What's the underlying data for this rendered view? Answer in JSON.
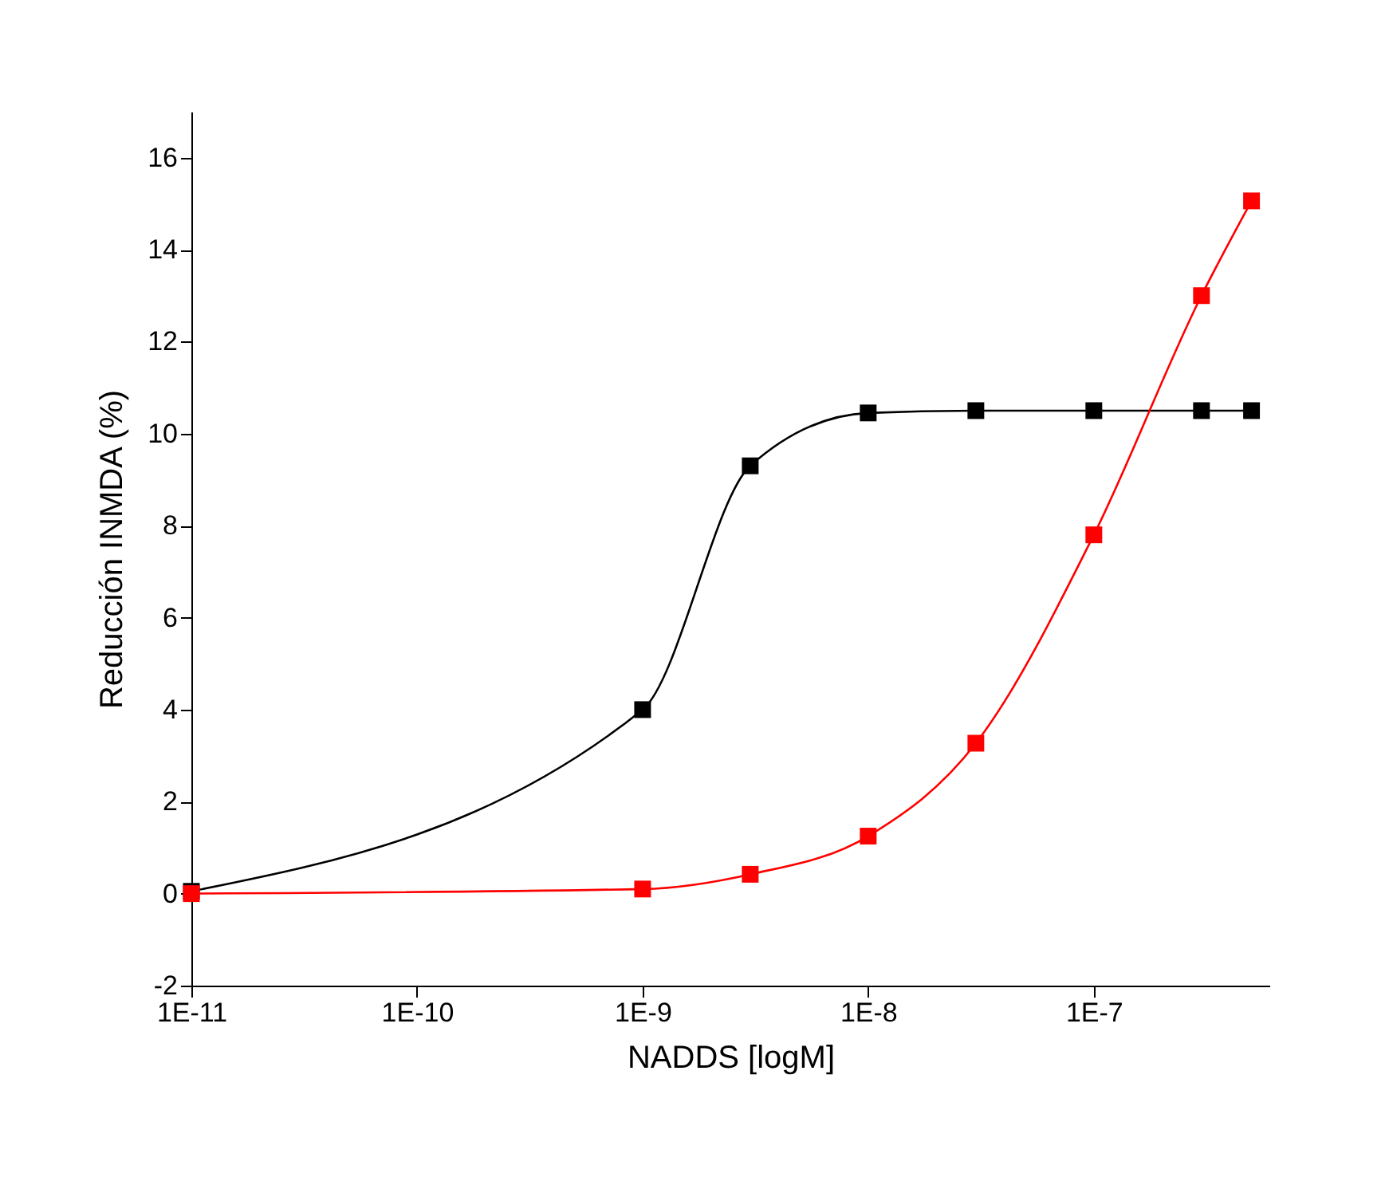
{
  "chart_data": {
    "type": "line",
    "xlabel": "NADDS [logM]",
    "ylabel": "Reducción INMDA (%)",
    "x": [
      1e-11,
      1e-09,
      3e-09,
      1e-08,
      3e-08,
      1e-07,
      3e-07,
      5e-07
    ],
    "series": [
      {
        "color": "#000000",
        "values": [
          0.05,
          4.0,
          9.3,
          10.45,
          10.5,
          10.5,
          10.5,
          10.5
        ]
      },
      {
        "color": "#ff0000",
        "values": [
          0.0,
          0.1,
          0.42,
          1.25,
          3.27,
          7.8,
          13.0,
          15.06
        ]
      }
    ],
    "log": "x",
    "xlim": [
      1e-11,
      6e-07
    ],
    "ylim": [
      -2,
      17
    ],
    "xticks": [
      {
        "value": 1e-11,
        "label": "1E-11"
      },
      {
        "value": 1e-10,
        "label": "1E-10"
      },
      {
        "value": 1e-09,
        "label": "1E-9"
      },
      {
        "value": 1e-08,
        "label": "1E-8"
      },
      {
        "value": 1e-07,
        "label": "1E-7"
      }
    ],
    "yticks": [
      -2,
      0,
      2,
      4,
      6,
      8,
      10,
      12,
      14,
      16
    ],
    "grid": false,
    "legend": false,
    "marker": "square",
    "line_style": "solid"
  }
}
